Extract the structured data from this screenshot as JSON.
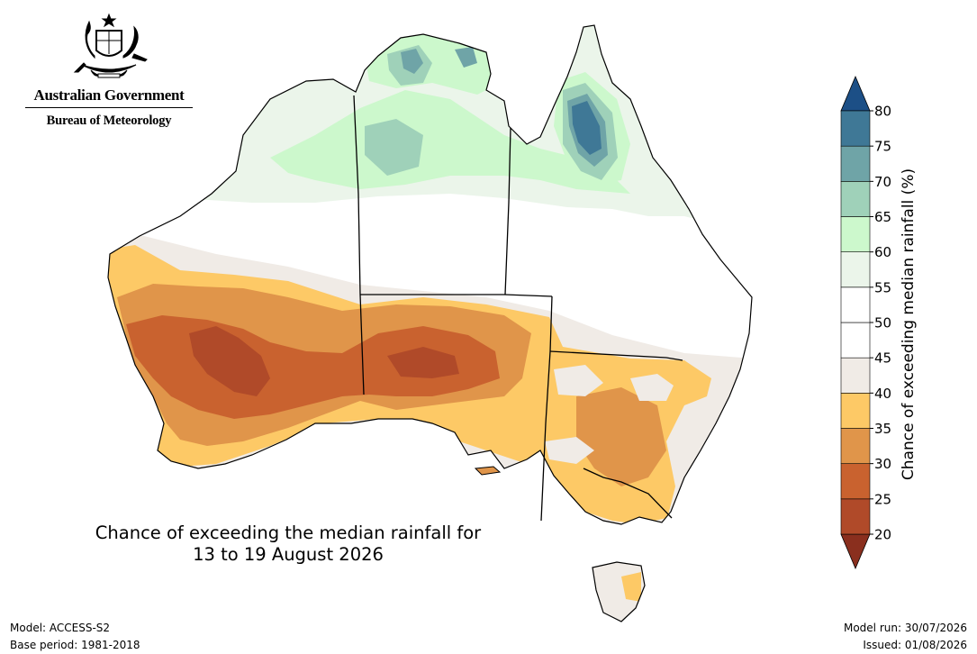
{
  "header": {
    "government_name": "Australian Government",
    "agency_name": "Bureau of Meteorology",
    "crest_icon": "coat-of-arms-icon"
  },
  "map": {
    "title_line1": "Chance of exceeding the median rainfall for",
    "title_line2": "13 to 19 August 2026",
    "colors": {
      "20-25": "#b04a29",
      "25-30": "#c9622f",
      "30-35": "#e0954a",
      "35-40": "#fdc966",
      "40-45": "#f0ebe6",
      "45-55": "#ffffff",
      "55-60": "#ebf5ea",
      "60-65": "#ccf8cc",
      "65-70": "#9fd1b9",
      "70-75": "#6fa4a7",
      "75-80": "#3f7896"
    }
  },
  "colorbar": {
    "label": "Chance of exceeding median rainfall (%)",
    "ticks": [
      "20",
      "25",
      "30",
      "35",
      "40",
      "45",
      "50",
      "55",
      "60",
      "65",
      "70",
      "75",
      "80"
    ],
    "bands": [
      {
        "from": 20,
        "to": 25,
        "color": "#b04a29"
      },
      {
        "from": 25,
        "to": 30,
        "color": "#c9622f"
      },
      {
        "from": 30,
        "to": 35,
        "color": "#e0954a"
      },
      {
        "from": 35,
        "to": 40,
        "color": "#fdc966"
      },
      {
        "from": 40,
        "to": 45,
        "color": "#f0ebe6"
      },
      {
        "from": 45,
        "to": 50,
        "color": "#ffffff"
      },
      {
        "from": 50,
        "to": 55,
        "color": "#ffffff"
      },
      {
        "from": 55,
        "to": 60,
        "color": "#ebf5ea"
      },
      {
        "from": 60,
        "to": 65,
        "color": "#ccf8cc"
      },
      {
        "from": 65,
        "to": 70,
        "color": "#9fd1b9"
      },
      {
        "from": 70,
        "to": 75,
        "color": "#6fa4a7"
      },
      {
        "from": 75,
        "to": 80,
        "color": "#3f7896"
      }
    ],
    "under_color": "#8a2f1e",
    "over_color": "#1c4f86"
  },
  "footer": {
    "model": "Model: ACCESS-S2",
    "base_period": "Base period: 1981-2018",
    "model_run": "Model run: 30/07/2026",
    "issued": "Issued: 01/08/2026"
  }
}
